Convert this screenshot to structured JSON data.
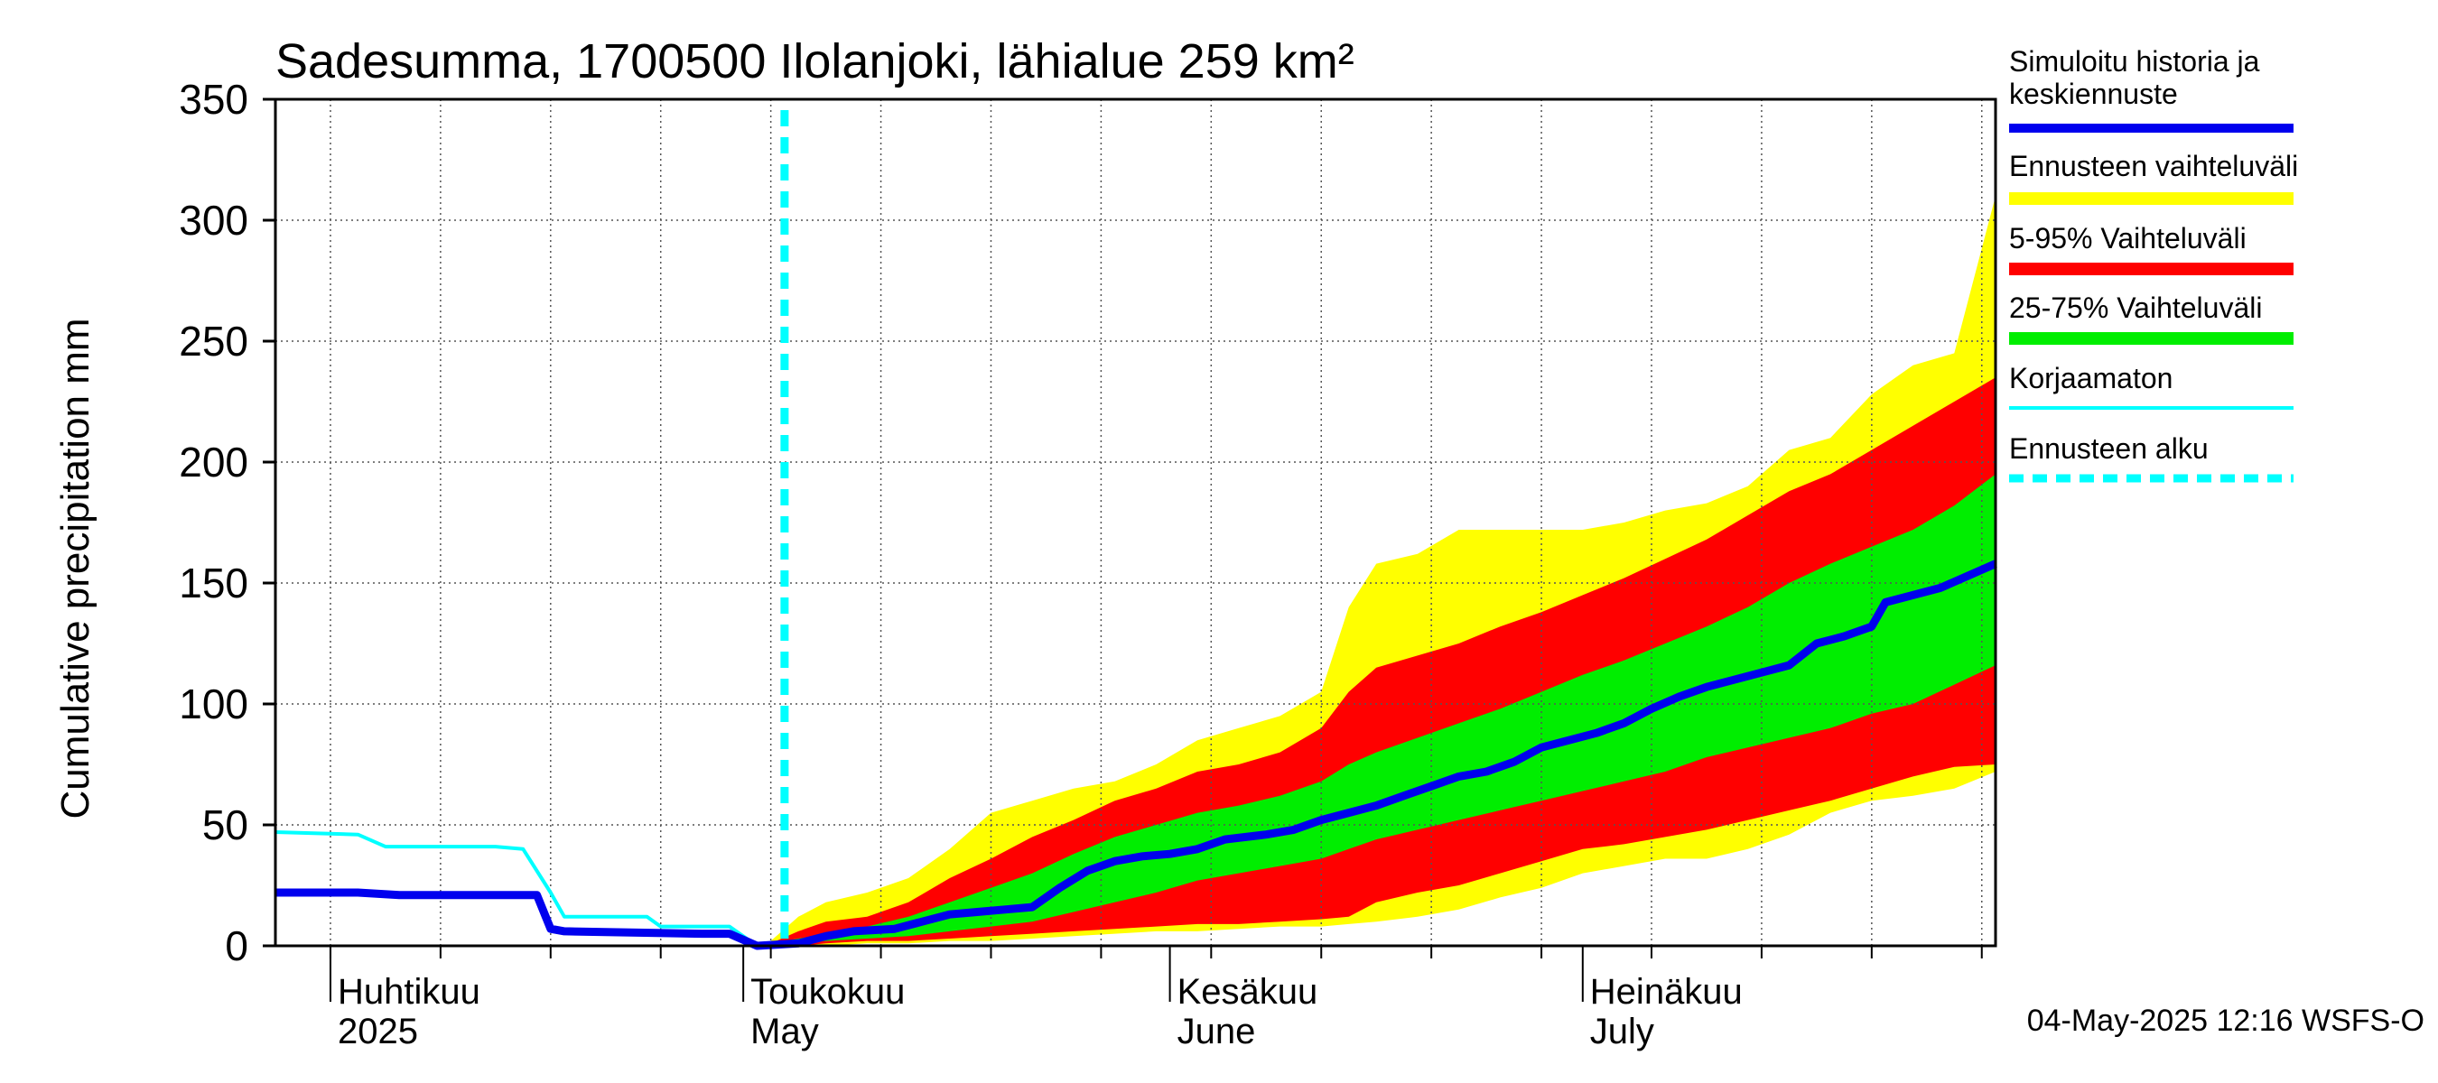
{
  "chart_data": {
    "type": "area",
    "title": "Sadesumma, 1700500 Ilolanjoki, lähialue 259 km²",
    "ylabel": "Cumulative precipitation   mm",
    "xlabel": "",
    "ylim": [
      0,
      350
    ],
    "xlim": [
      "2025-03-28",
      "2025-07-31"
    ],
    "grid": true,
    "y_ticks": [
      0,
      50,
      100,
      150,
      200,
      250,
      300,
      350
    ],
    "month_labels": [
      {
        "date": "2025-04-01",
        "fi": "Huhtikuu",
        "en": "2025"
      },
      {
        "date": "2025-05-01",
        "fi": "Toukokuu",
        "en": "May"
      },
      {
        "date": "2025-06-01",
        "fi": "Kesäkuu",
        "en": "June"
      },
      {
        "date": "2025-07-01",
        "fi": "Heinäkuu",
        "en": "July"
      }
    ],
    "forecast_start": "2025-05-04",
    "legend": {
      "position": "right",
      "items": [
        {
          "label_line1": "Simuloitu historia ja",
          "label_line2": "keskiennuste",
          "color": "#0000ee",
          "style": "solid-thick"
        },
        {
          "label_line1": "Ennusteen vaihteluväli",
          "label_line2": "",
          "color": "#ffff00",
          "style": "band"
        },
        {
          "label_line1": "5-95% Vaihteluväli",
          "label_line2": "",
          "color": "#ff0000",
          "style": "band"
        },
        {
          "label_line1": "25-75% Vaihteluväli",
          "label_line2": "",
          "color": "#00ee00",
          "style": "band"
        },
        {
          "label_line1": "Korjaamaton",
          "label_line2": "",
          "color": "#00ffff",
          "style": "solid-thin"
        },
        {
          "label_line1": "Ennusteen alku",
          "label_line2": "",
          "color": "#00ffff",
          "style": "dashed"
        }
      ]
    },
    "series": [
      {
        "name": "Simuloitu historia ja keskiennuste",
        "color": "#0000ee",
        "points": [
          [
            "2025-03-28",
            22
          ],
          [
            "2025-04-03",
            22
          ],
          [
            "2025-04-06",
            21
          ],
          [
            "2025-04-13",
            21
          ],
          [
            "2025-04-13",
            21
          ],
          [
            "2025-04-16",
            21
          ],
          [
            "2025-04-17",
            7
          ],
          [
            "2025-04-18",
            6
          ],
          [
            "2025-04-28",
            5
          ],
          [
            "2025-04-30",
            5
          ],
          [
            "2025-05-02",
            0
          ],
          [
            "2025-05-05",
            1
          ],
          [
            "2025-05-07",
            4
          ],
          [
            "2025-05-09",
            6
          ],
          [
            "2025-05-12",
            7
          ],
          [
            "2025-05-14",
            10
          ],
          [
            "2025-05-16",
            13
          ],
          [
            "2025-05-18",
            14
          ],
          [
            "2025-05-20",
            15
          ],
          [
            "2025-05-22",
            16
          ],
          [
            "2025-05-24",
            24
          ],
          [
            "2025-05-26",
            31
          ],
          [
            "2025-05-28",
            35
          ],
          [
            "2025-05-30",
            37
          ],
          [
            "2025-06-01",
            38
          ],
          [
            "2025-06-03",
            40
          ],
          [
            "2025-06-05",
            44
          ],
          [
            "2025-06-08",
            46
          ],
          [
            "2025-06-10",
            48
          ],
          [
            "2025-06-12",
            52
          ],
          [
            "2025-06-14",
            55
          ],
          [
            "2025-06-16",
            58
          ],
          [
            "2025-06-18",
            62
          ],
          [
            "2025-06-20",
            66
          ],
          [
            "2025-06-22",
            70
          ],
          [
            "2025-06-24",
            72
          ],
          [
            "2025-06-26",
            76
          ],
          [
            "2025-06-28",
            82
          ],
          [
            "2025-06-30",
            85
          ],
          [
            "2025-07-02",
            88
          ],
          [
            "2025-07-04",
            92
          ],
          [
            "2025-07-06",
            98
          ],
          [
            "2025-07-08",
            103
          ],
          [
            "2025-07-10",
            107
          ],
          [
            "2025-07-12",
            110
          ],
          [
            "2025-07-14",
            113
          ],
          [
            "2025-07-16",
            116
          ],
          [
            "2025-07-18",
            125
          ],
          [
            "2025-07-20",
            128
          ],
          [
            "2025-07-22",
            132
          ],
          [
            "2025-07-23",
            142
          ],
          [
            "2025-07-25",
            145
          ],
          [
            "2025-07-27",
            148
          ],
          [
            "2025-07-29",
            153
          ],
          [
            "2025-07-31",
            158
          ]
        ]
      },
      {
        "name": "Korjaamaton",
        "color": "#00ffff",
        "points": [
          [
            "2025-03-28",
            47
          ],
          [
            "2025-04-03",
            46
          ],
          [
            "2025-04-05",
            41
          ],
          [
            "2025-04-13",
            41
          ],
          [
            "2025-04-15",
            40
          ],
          [
            "2025-04-17",
            22
          ],
          [
            "2025-04-18",
            12
          ],
          [
            "2025-04-24",
            12
          ],
          [
            "2025-04-25",
            8
          ],
          [
            "2025-04-30",
            8
          ],
          [
            "2025-05-02",
            0
          ],
          [
            "2025-05-04",
            0
          ]
        ]
      }
    ],
    "bands": [
      {
        "name": "Ennusteen vaihteluväli",
        "color": "#ffff00",
        "x": [
          "2025-05-03",
          "2025-05-05",
          "2025-05-07",
          "2025-05-10",
          "2025-05-13",
          "2025-05-16",
          "2025-05-19",
          "2025-05-22",
          "2025-05-25",
          "2025-05-28",
          "2025-05-31",
          "2025-06-03",
          "2025-06-06",
          "2025-06-09",
          "2025-06-12",
          "2025-06-14",
          "2025-06-16",
          "2025-06-19",
          "2025-06-22",
          "2025-06-25",
          "2025-06-28",
          "2025-07-01",
          "2025-07-04",
          "2025-07-07",
          "2025-07-10",
          "2025-07-13",
          "2025-07-16",
          "2025-07-19",
          "2025-07-22",
          "2025-07-25",
          "2025-07-28",
          "2025-07-31"
        ],
        "low": [
          0,
          0,
          0,
          1,
          1,
          2,
          2,
          3,
          4,
          5,
          6,
          6,
          7,
          8,
          8,
          9,
          10,
          12,
          15,
          20,
          24,
          30,
          33,
          36,
          36,
          40,
          46,
          55,
          60,
          62,
          65,
          72
        ],
        "high": [
          2,
          12,
          18,
          22,
          28,
          40,
          55,
          60,
          65,
          68,
          75,
          85,
          90,
          95,
          105,
          140,
          158,
          162,
          172,
          172,
          172,
          172,
          175,
          180,
          183,
          190,
          205,
          210,
          228,
          240,
          245,
          310
        ]
      },
      {
        "name": "5-95% Vaihteluväli",
        "color": "#ff0000",
        "x": [
          "2025-05-03",
          "2025-05-05",
          "2025-05-07",
          "2025-05-10",
          "2025-05-13",
          "2025-05-16",
          "2025-05-19",
          "2025-05-22",
          "2025-05-25",
          "2025-05-28",
          "2025-05-31",
          "2025-06-03",
          "2025-06-06",
          "2025-06-09",
          "2025-06-12",
          "2025-06-14",
          "2025-06-16",
          "2025-06-19",
          "2025-06-22",
          "2025-06-25",
          "2025-06-28",
          "2025-07-01",
          "2025-07-04",
          "2025-07-07",
          "2025-07-10",
          "2025-07-13",
          "2025-07-16",
          "2025-07-19",
          "2025-07-22",
          "2025-07-25",
          "2025-07-28",
          "2025-07-31"
        ],
        "low": [
          0,
          0,
          1,
          2,
          2,
          3,
          4,
          5,
          6,
          7,
          8,
          9,
          9,
          10,
          11,
          12,
          18,
          22,
          25,
          30,
          35,
          40,
          42,
          45,
          48,
          52,
          56,
          60,
          65,
          70,
          74,
          75
        ],
        "high": [
          1,
          6,
          10,
          12,
          18,
          28,
          36,
          45,
          52,
          60,
          65,
          72,
          75,
          80,
          90,
          105,
          115,
          120,
          125,
          132,
          138,
          145,
          152,
          160,
          168,
          178,
          188,
          195,
          205,
          215,
          225,
          235
        ]
      },
      {
        "name": "25-75% Vaihteluväli",
        "color": "#00ee00",
        "x": [
          "2025-05-03",
          "2025-05-05",
          "2025-05-07",
          "2025-05-10",
          "2025-05-13",
          "2025-05-16",
          "2025-05-19",
          "2025-05-22",
          "2025-05-25",
          "2025-05-28",
          "2025-05-31",
          "2025-06-03",
          "2025-06-06",
          "2025-06-09",
          "2025-06-12",
          "2025-06-14",
          "2025-06-16",
          "2025-06-19",
          "2025-06-22",
          "2025-06-25",
          "2025-06-28",
          "2025-07-01",
          "2025-07-04",
          "2025-07-07",
          "2025-07-10",
          "2025-07-13",
          "2025-07-16",
          "2025-07-19",
          "2025-07-22",
          "2025-07-25",
          "2025-07-28",
          "2025-07-31"
        ],
        "low": [
          0,
          1,
          2,
          3,
          4,
          6,
          8,
          10,
          14,
          18,
          22,
          27,
          30,
          33,
          36,
          40,
          44,
          48,
          52,
          56,
          60,
          64,
          68,
          72,
          78,
          82,
          86,
          90,
          96,
          100,
          108,
          116
        ],
        "high": [
          1,
          3,
          5,
          8,
          12,
          18,
          24,
          30,
          38,
          45,
          50,
          55,
          58,
          62,
          68,
          75,
          80,
          86,
          92,
          98,
          105,
          112,
          118,
          125,
          132,
          140,
          150,
          158,
          165,
          172,
          182,
          195
        ]
      }
    ]
  },
  "footer": {
    "timestamp": "04-May-2025 12:16 WSFS-O"
  }
}
